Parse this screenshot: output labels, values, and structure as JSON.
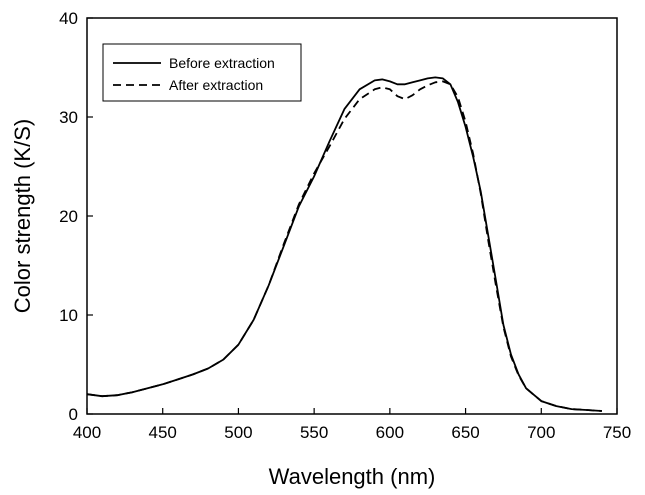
{
  "chart_data": {
    "type": "line",
    "title": "",
    "xlabel": "Wavelength (nm)",
    "ylabel": "Color strength (K/S)",
    "xlim": [
      400,
      750
    ],
    "ylim": [
      0,
      40
    ],
    "xticks": [
      400,
      450,
      500,
      550,
      600,
      650,
      700,
      750
    ],
    "yticks": [
      0,
      10,
      20,
      30,
      40
    ],
    "grid": false,
    "legend_position": "top-left",
    "series": [
      {
        "name": "Before extraction",
        "line_style": "solid",
        "color": "#000000",
        "x": [
          400,
          410,
          420,
          430,
          440,
          450,
          460,
          470,
          480,
          490,
          500,
          510,
          520,
          530,
          540,
          550,
          560,
          570,
          580,
          590,
          595,
          600,
          605,
          610,
          615,
          620,
          625,
          630,
          635,
          640,
          645,
          650,
          655,
          660,
          665,
          670,
          675,
          680,
          685,
          690,
          700,
          710,
          720,
          730,
          740
        ],
        "y": [
          2.0,
          1.8,
          1.9,
          2.2,
          2.6,
          3.0,
          3.5,
          4.0,
          4.6,
          5.5,
          7.0,
          9.5,
          13.0,
          17.0,
          21.0,
          24.0,
          27.5,
          30.8,
          32.8,
          33.7,
          33.8,
          33.6,
          33.3,
          33.3,
          33.5,
          33.7,
          33.9,
          34.0,
          33.9,
          33.3,
          31.5,
          29.0,
          26.0,
          22.5,
          18.0,
          13.5,
          9.0,
          6.0,
          4.0,
          2.6,
          1.3,
          0.8,
          0.5,
          0.4,
          0.3
        ]
      },
      {
        "name": "After extraction",
        "line_style": "dashed",
        "color": "#000000",
        "x": [
          400,
          410,
          420,
          430,
          440,
          450,
          460,
          470,
          480,
          490,
          500,
          510,
          520,
          530,
          540,
          550,
          560,
          570,
          580,
          590,
          595,
          600,
          605,
          610,
          615,
          620,
          625,
          630,
          635,
          640,
          645,
          650,
          655,
          660,
          665,
          670,
          675,
          680,
          685,
          690,
          700,
          710,
          720,
          730,
          740
        ],
        "y": [
          2.0,
          1.8,
          1.9,
          2.2,
          2.6,
          3.0,
          3.5,
          4.0,
          4.6,
          5.5,
          7.0,
          9.5,
          13.0,
          17.2,
          21.2,
          24.3,
          27.0,
          29.8,
          31.8,
          32.8,
          33.0,
          32.8,
          32.1,
          31.8,
          32.2,
          32.8,
          33.2,
          33.5,
          33.6,
          33.3,
          32.0,
          29.5,
          26.3,
          22.3,
          17.5,
          13.0,
          8.8,
          5.8,
          3.9,
          2.6,
          1.3,
          0.8,
          0.5,
          0.4,
          0.3
        ]
      }
    ]
  }
}
